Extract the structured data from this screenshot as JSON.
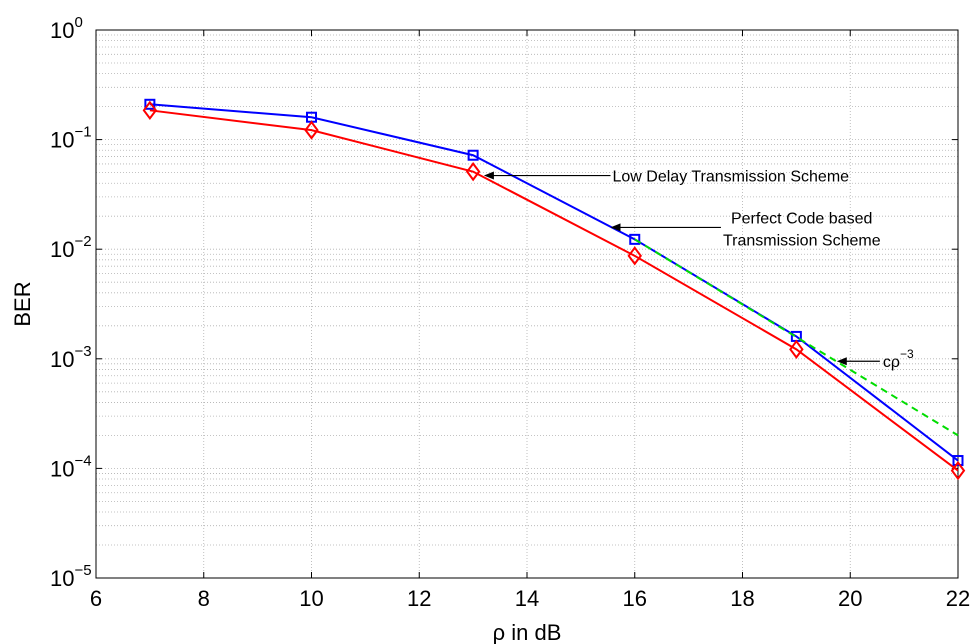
{
  "chart_data": {
    "type": "line",
    "xlabel": "ρ in dB",
    "ylabel": "BER",
    "xlim": [
      6,
      22
    ],
    "ylim": [
      1e-05,
      1
    ],
    "yscale": "log",
    "grid": true,
    "x_ticks": [
      6,
      8,
      10,
      12,
      14,
      16,
      18,
      20,
      22
    ],
    "y_ticks": [
      {
        "value": 1e-05,
        "base": "10",
        "exp": "−5"
      },
      {
        "value": 0.0001,
        "base": "10",
        "exp": "−4"
      },
      {
        "value": 0.001,
        "base": "10",
        "exp": "−3"
      },
      {
        "value": 0.01,
        "base": "10",
        "exp": "−2"
      },
      {
        "value": 0.1,
        "base": "10",
        "exp": "−1"
      },
      {
        "value": 1,
        "base": "10",
        "exp": "0"
      }
    ],
    "series": [
      {
        "x": [
          7,
          10,
          13,
          16,
          19,
          22
        ],
        "values": [
          0.21,
          0.16,
          0.072,
          0.0123,
          0.0016,
          0.000118
        ],
        "color": "#0000ff",
        "marker": "square",
        "dash": "solid"
      },
      {
        "x": [
          7,
          10,
          13,
          16,
          19,
          22
        ],
        "values": [
          0.185,
          0.122,
          0.051,
          0.0087,
          0.00122,
          9.55e-05
        ],
        "color": "#ff0000",
        "marker": "diamond",
        "dash": "solid"
      },
      {
        "x": [
          16,
          19,
          22
        ],
        "values": [
          0.0123,
          0.00158,
          0.0002
        ],
        "color": "#00dd00",
        "marker": "none",
        "dash": "dashed"
      }
    ],
    "annotations": [
      {
        "lines": [
          "Low Delay Transmission Scheme"
        ],
        "arrow_to": [
          13.2,
          0.047
        ],
        "arrow_from": [
          15.55,
          0.047
        ],
        "anchor": "start"
      },
      {
        "lines": [
          "Perfect Code based",
          "Transmission Scheme"
        ],
        "arrow_to": [
          15.55,
          0.0158
        ],
        "arrow_from": [
          17.6,
          0.0158
        ],
        "anchor": "start"
      },
      {
        "lines": [
          "cρ",
          "−3"
        ],
        "arrow_to": [
          19.75,
          0.00095
        ],
        "arrow_from": [
          20.55,
          0.00095
        ],
        "anchor": "start",
        "superscript": true
      }
    ]
  }
}
